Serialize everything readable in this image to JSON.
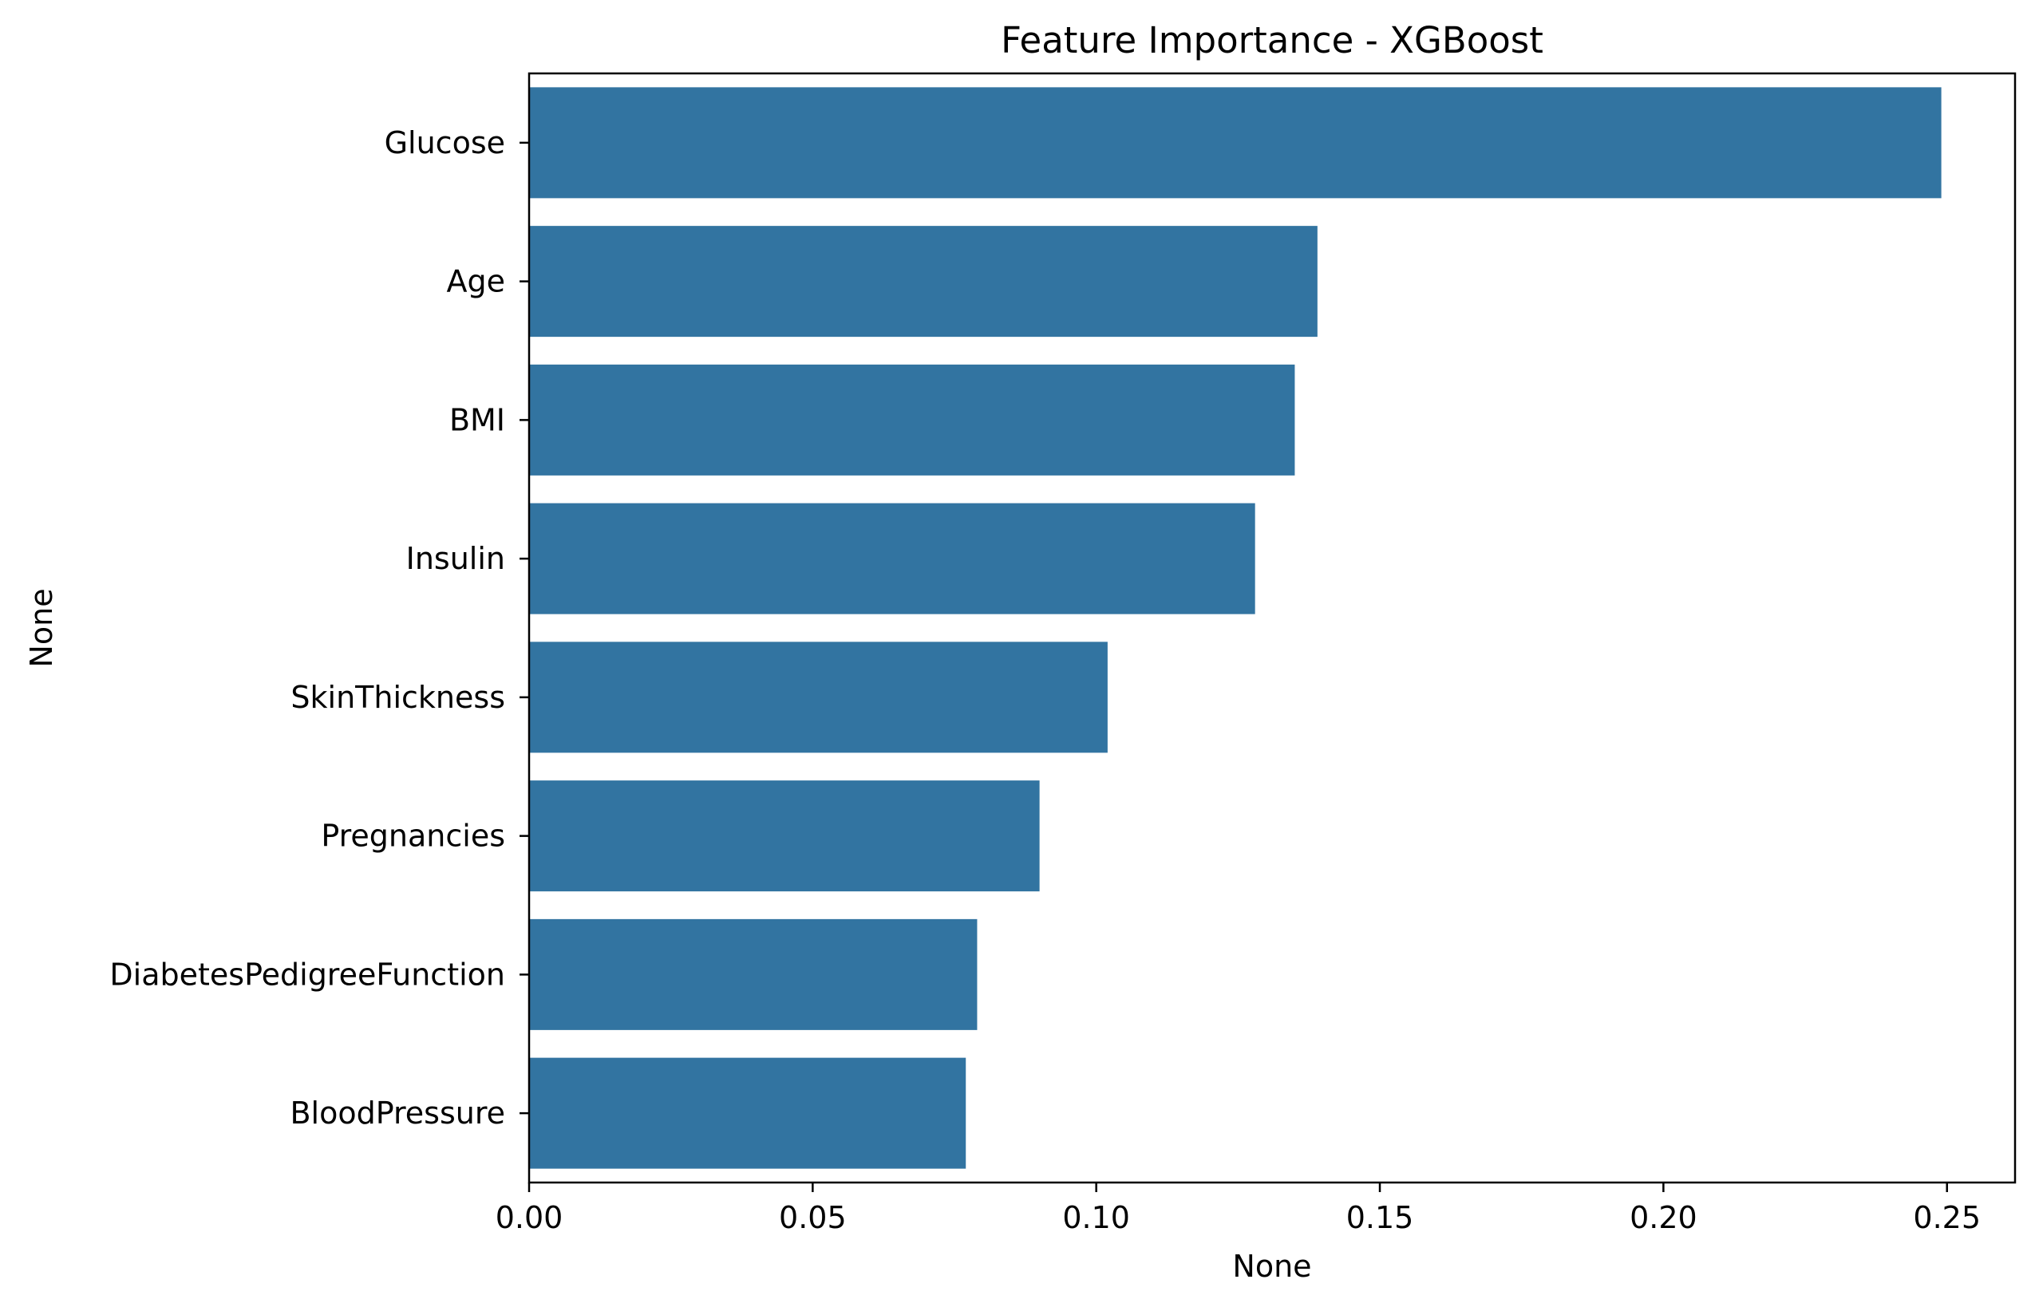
{
  "chart_data": {
    "type": "bar",
    "orientation": "horizontal",
    "title": "Feature Importance - XGBoost",
    "xlabel": "None",
    "ylabel": "None",
    "categories": [
      "Glucose",
      "Age",
      "BMI",
      "Insulin",
      "SkinThickness",
      "Pregnancies",
      "DiabetesPedigreeFunction",
      "BloodPressure"
    ],
    "values": [
      0.249,
      0.139,
      0.135,
      0.128,
      0.102,
      0.09,
      0.079,
      0.077
    ],
    "xlim": [
      0,
      0.262
    ],
    "xticks": [
      0.0,
      0.05,
      0.1,
      0.15,
      0.2,
      0.25
    ],
    "xtick_labels": [
      "0.00",
      "0.05",
      "0.10",
      "0.15",
      "0.20",
      "0.25"
    ],
    "grid": false,
    "legend": "none",
    "bar_color": "#3274a1"
  }
}
